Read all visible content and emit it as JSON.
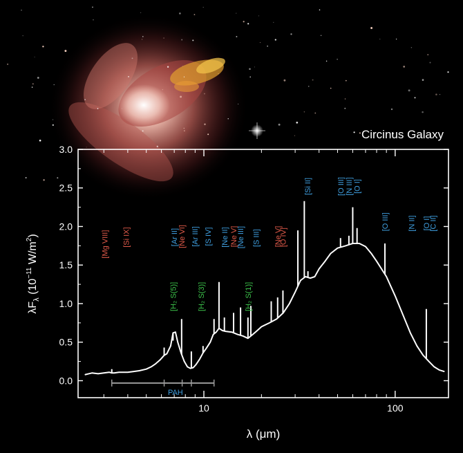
{
  "figure": {
    "galaxy_title": "Circinus Galaxy"
  },
  "chart_data": {
    "type": "line",
    "title": "",
    "xlabel": "λ (μm)",
    "ylabel_parts": {
      "lead": "λF",
      "sub": "λ",
      "open": " (10",
      "exp": "−11",
      "unit": " W/m",
      "unit_exp": "2",
      "close": ")"
    },
    "x_scale": "log",
    "xlim": [
      2.2,
      190
    ],
    "ylim": [
      -0.22,
      3.0
    ],
    "yticks": [
      "0.0",
      "0.5",
      "1.0",
      "1.5",
      "2.0",
      "2.5",
      "3.0"
    ],
    "xticks": [
      "10",
      "100"
    ],
    "grid": false,
    "series": [
      {
        "x": [
          2.4,
          2.6,
          2.8,
          3.0,
          3.2,
          3.3,
          3.4,
          3.6,
          3.8,
          4.0,
          4.3,
          4.6,
          5.0,
          5.3,
          5.6,
          5.9,
          6.2,
          6.4,
          6.7,
          6.9,
          7.1,
          7.3,
          7.6,
          7.9,
          8.2,
          8.5,
          8.8,
          9.1,
          9.5,
          9.9,
          10.3,
          10.8,
          11.2,
          11.6,
          12.0,
          12.5,
          13.0,
          14.0,
          15.0,
          16.0,
          17.0,
          18.0,
          19.0,
          20.0,
          22.0,
          24.0,
          26.0,
          28.0,
          30.0,
          32.0,
          34.0,
          36.0,
          38.0,
          40.0,
          43.0,
          46.0,
          50.0,
          55.0,
          60.0,
          65.0,
          70.0,
          75.0,
          80.0,
          90.0,
          100.0,
          110.0,
          120.0,
          130.0,
          140.0,
          150.0,
          160.0,
          170.0,
          180.0
        ],
        "y": [
          0.08,
          0.1,
          0.09,
          0.1,
          0.11,
          0.1,
          0.1,
          0.11,
          0.11,
          0.11,
          0.12,
          0.13,
          0.15,
          0.18,
          0.22,
          0.27,
          0.33,
          0.35,
          0.45,
          0.62,
          0.63,
          0.5,
          0.36,
          0.25,
          0.18,
          0.16,
          0.17,
          0.21,
          0.28,
          0.36,
          0.42,
          0.5,
          0.6,
          0.63,
          0.68,
          0.65,
          0.64,
          0.63,
          0.6,
          0.58,
          0.55,
          0.6,
          0.65,
          0.7,
          0.75,
          0.8,
          0.88,
          1.0,
          1.15,
          1.3,
          1.35,
          1.33,
          1.35,
          1.45,
          1.55,
          1.65,
          1.72,
          1.75,
          1.78,
          1.78,
          1.74,
          1.65,
          1.55,
          1.35,
          1.1,
          0.85,
          0.62,
          0.45,
          0.33,
          0.25,
          0.18,
          0.14,
          0.12
        ]
      }
    ],
    "emission_spikes": [
      [
        3.3,
        0.15
      ],
      [
        6.2,
        0.43
      ],
      [
        6.9,
        0.52
      ],
      [
        7.65,
        0.8
      ],
      [
        8.6,
        0.38
      ],
      [
        9.9,
        0.45
      ],
      [
        11.3,
        0.8
      ],
      [
        12.0,
        1.28
      ],
      [
        12.8,
        0.82
      ],
      [
        14.3,
        0.88
      ],
      [
        15.55,
        0.95
      ],
      [
        17.0,
        0.82
      ],
      [
        17.6,
        0.97
      ],
      [
        22.5,
        1.03
      ],
      [
        24.3,
        1.08
      ],
      [
        25.9,
        1.17
      ],
      [
        31.0,
        1.95
      ],
      [
        33.5,
        2.33
      ],
      [
        35.0,
        1.42
      ],
      [
        51.8,
        1.85
      ],
      [
        57.3,
        1.88
      ],
      [
        60.0,
        2.25
      ],
      [
        63.2,
        1.98
      ],
      [
        88.4,
        1.78
      ],
      [
        145.5,
        0.93
      ]
    ],
    "pah_bracket": {
      "label": "PAH",
      "x_start": 3.3,
      "x_end": 11.3,
      "ticks": [
        3.3,
        6.2,
        7.7,
        8.6,
        11.3
      ],
      "y": -0.03
    },
    "line_labels": [
      {
        "text": "[Mg VIII]",
        "x": 3.03,
        "y_center": 1.77,
        "color": "red"
      },
      {
        "text": "[Si IX]",
        "x": 3.93,
        "y_center": 1.86,
        "color": "red"
      },
      {
        "text": "[Ar II]",
        "x": 6.99,
        "y_center": 1.86,
        "color": "blue"
      },
      {
        "text": "[Ne VI]",
        "x": 7.65,
        "y_center": 1.87,
        "color": "red"
      },
      {
        "text": "[Ar III]",
        "x": 8.99,
        "y_center": 1.87,
        "color": "blue"
      },
      {
        "text": "[S IV]",
        "x": 10.51,
        "y_center": 1.87,
        "color": "blue"
      },
      {
        "text": "[Ne II]",
        "x": 12.81,
        "y_center": 1.86,
        "color": "blue"
      },
      {
        "text": "[Ne V]",
        "x": 14.32,
        "y_center": 1.87,
        "color": "red"
      },
      {
        "text": "[Ne III]",
        "x": 15.55,
        "y_center": 1.86,
        "color": "blue"
      },
      {
        "text": "[S III]",
        "x": 18.71,
        "y_center": 1.85,
        "color": "blue"
      },
      {
        "text": "[Ne V]",
        "x": 24.3,
        "y_center": 1.87,
        "color": "red"
      },
      {
        "text": "[O IV]",
        "x": 25.89,
        "y_center": 1.86,
        "color": "red"
      },
      {
        "text": "[Si II]",
        "x": 34.81,
        "y_center": 2.52,
        "color": "blue"
      },
      {
        "text": "[O III]",
        "x": 51.81,
        "y_center": 2.52,
        "color": "blue"
      },
      {
        "text": "[N III]",
        "x": 57.32,
        "y_center": 2.52,
        "color": "blue"
      },
      {
        "text": "[O I]",
        "x": 63.18,
        "y_center": 2.52,
        "color": "blue"
      },
      {
        "text": "[O III]",
        "x": 88.36,
        "y_center": 2.06,
        "color": "blue"
      },
      {
        "text": "[N II]",
        "x": 121.9,
        "y_center": 2.04,
        "color": "blue"
      },
      {
        "text": "[O I]",
        "x": 145.5,
        "y_center": 2.04,
        "color": "blue"
      },
      {
        "text": "[C II]",
        "x": 157.7,
        "y_center": 2.04,
        "color": "blue"
      },
      {
        "text": "[H₂ S(5)]",
        "x": 6.91,
        "y_center": 1.09,
        "color": "green"
      },
      {
        "text": "[H₂ S(3)]",
        "x": 9.66,
        "y_center": 1.09,
        "color": "green"
      },
      {
        "text": "[H₂ S(1)]",
        "x": 17.03,
        "y_center": 1.09,
        "color": "green"
      }
    ],
    "colors": {
      "spectrum": "#ffffff",
      "red": "#e05a4a",
      "blue": "#3f9fe0",
      "green": "#3cc24a",
      "pah": "#9a9a9a",
      "pah_label": "#3f9fe0",
      "axes": "#ffffff",
      "background": "#000000"
    }
  }
}
